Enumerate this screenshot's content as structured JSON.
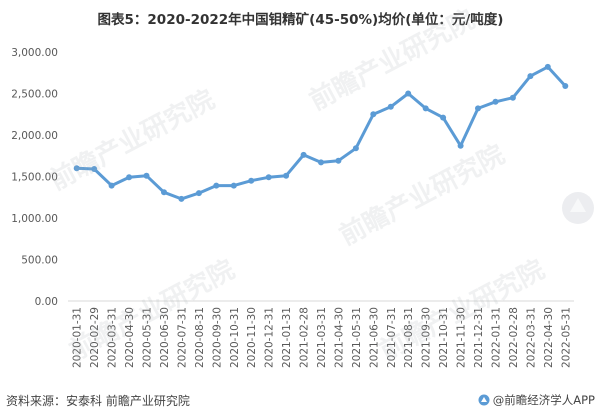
{
  "title": "图表5：2020-2022年中国钼精矿(45-50%)均价(单位：元/吨度)",
  "footer": {
    "source": "资料来源：安泰科 前瞻产业研究院",
    "brand": "@前瞻经济学人APP"
  },
  "watermark_text": "前瞻产业研究院",
  "colors": {
    "line": "#5b9bd5",
    "axis": "#d9d9d9",
    "text": "#595959"
  },
  "chart_data": {
    "type": "line",
    "title": "图表5：2020-2022年中国钼精矿(45-50%)均价(单位：元/吨度)",
    "xlabel": "",
    "ylabel": "",
    "ylim": [
      0,
      3000
    ],
    "yticks": [
      "0.00",
      "500.00",
      "1,000.00",
      "1,500.00",
      "2,000.00",
      "2,500.00",
      "3,000.00"
    ],
    "ytick_values": [
      0,
      500,
      1000,
      1500,
      2000,
      2500,
      3000
    ],
    "grid": false,
    "legend": "none",
    "categories": [
      "2020-01-31",
      "2020-02-29",
      "2020-03-31",
      "2020-04-30",
      "2020-05-31",
      "2020-06-30",
      "2020-07-31",
      "2020-08-31",
      "2020-09-30",
      "2020-10-31",
      "2020-11-30",
      "2020-12-31",
      "2021-01-31",
      "2021-02-28",
      "2021-03-31",
      "2021-04-30",
      "2021-05-31",
      "2021-06-30",
      "2021-07-31",
      "2021-08-31",
      "2021-09-30",
      "2021-10-31",
      "2021-11-30",
      "2021-12-31",
      "2022-01-31",
      "2022-02-28",
      "2022-03-31",
      "2022-04-30",
      "2022-05-31"
    ],
    "values": [
      1600,
      1590,
      1390,
      1490,
      1510,
      1310,
      1230,
      1300,
      1390,
      1390,
      1450,
      1490,
      1510,
      1760,
      1670,
      1690,
      1840,
      2250,
      2340,
      2500,
      2320,
      2210,
      1870,
      2320,
      2400,
      2450,
      2710,
      2820,
      2590
    ]
  }
}
